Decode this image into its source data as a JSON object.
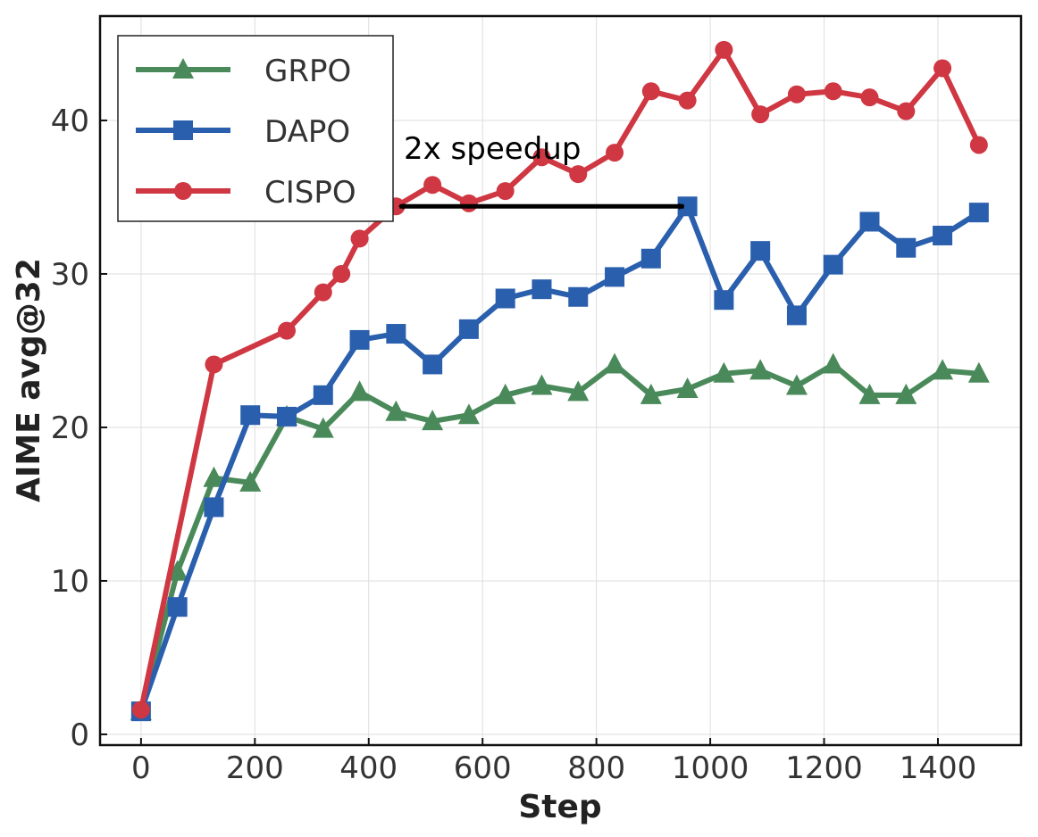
{
  "chart_data": {
    "type": "line",
    "title": "",
    "xlabel": "Step",
    "ylabel": "AIME avg@32",
    "xlim": [
      -72,
      1546
    ],
    "ylim": [
      -0.7,
      46.8
    ],
    "xticks": [
      0,
      200,
      400,
      600,
      800,
      1000,
      1200,
      1400
    ],
    "yticks": [
      0,
      10,
      20,
      30,
      40
    ],
    "grid": true,
    "legend_position": "top-left",
    "series": [
      {
        "name": "GRPO",
        "color": "#4a8a5a",
        "marker": "triangle",
        "x": [
          0,
          64,
          128,
          192,
          256,
          320,
          384,
          448,
          512,
          576,
          640,
          704,
          768,
          832,
          896,
          960,
          1024,
          1088,
          1152,
          1216,
          1280,
          1344,
          1408,
          1472
        ],
        "y": [
          1.5,
          10.6,
          16.7,
          16.4,
          20.7,
          19.9,
          22.3,
          21.0,
          20.4,
          20.8,
          22.1,
          22.7,
          22.3,
          24.1,
          22.1,
          22.5,
          23.5,
          23.7,
          22.7,
          24.1,
          22.1,
          22.1,
          23.7,
          23.5
        ]
      },
      {
        "name": "DAPO",
        "color": "#2a5fad",
        "marker": "square",
        "x": [
          0,
          64,
          128,
          192,
          256,
          320,
          384,
          448,
          512,
          576,
          640,
          704,
          768,
          832,
          896,
          960,
          1024,
          1088,
          1152,
          1216,
          1280,
          1344,
          1408,
          1472
        ],
        "y": [
          1.5,
          8.3,
          14.8,
          20.8,
          20.7,
          22.1,
          25.7,
          26.1,
          24.1,
          26.4,
          28.4,
          29.0,
          28.5,
          29.8,
          31.0,
          34.4,
          28.3,
          31.5,
          27.3,
          30.6,
          33.4,
          31.7,
          32.5,
          34.0
        ]
      },
      {
        "name": "CISPO",
        "color": "#cf3742",
        "marker": "circle",
        "x": [
          0,
          128,
          256,
          320,
          352,
          384,
          448,
          512,
          576,
          640,
          704,
          768,
          832,
          896,
          960,
          1024,
          1088,
          1152,
          1216,
          1280,
          1344,
          1408,
          1472
        ],
        "y": [
          1.6,
          24.1,
          26.3,
          28.8,
          30.0,
          32.3,
          34.4,
          35.8,
          34.6,
          35.4,
          37.6,
          36.5,
          37.9,
          41.9,
          41.3,
          44.6,
          40.4,
          41.7,
          41.9,
          41.5,
          40.6,
          43.4,
          38.4
        ]
      }
    ],
    "annotation": {
      "text": "2x speedup",
      "arrow_from": [
        448,
        34.4
      ],
      "arrow_to": [
        960,
        34.4
      ]
    }
  }
}
